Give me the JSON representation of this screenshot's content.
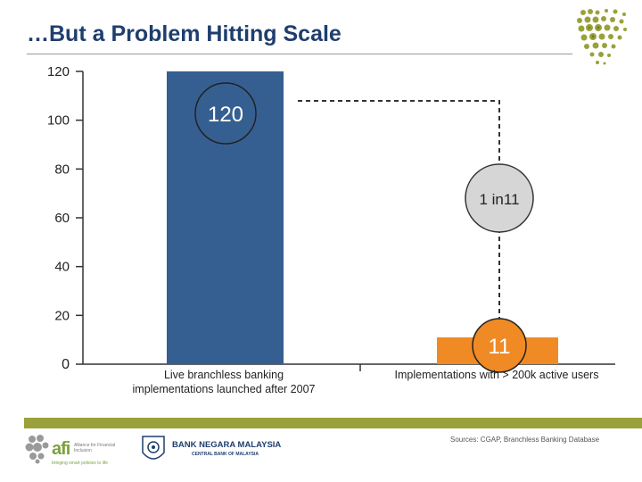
{
  "title": "…But a Problem Hitting Scale",
  "chart_data": {
    "type": "bar",
    "categories": [
      "Live branchless banking implementations launched after 2007",
      "Implementations with > 200k active users"
    ],
    "category_lines": [
      [
        "Live branchless banking",
        "implementations launched after 2007"
      ],
      [
        "Implementations with > 200k active users"
      ]
    ],
    "values": [
      120,
      11
    ],
    "colors": [
      "#365f91",
      "#f08a24"
    ],
    "value_labels": [
      "120",
      "11"
    ],
    "ratio_label": "1 in11",
    "ylim": [
      0,
      120
    ],
    "yticks": [
      0,
      20,
      40,
      60,
      80,
      100,
      120
    ],
    "grid": false,
    "legend": "none"
  },
  "footer": {
    "sources": "Sources: CGAP, Branchless Banking Database",
    "afi": {
      "name": "afi",
      "desc": "Alliance for Financial Inclusion",
      "tagline": "bringing smart policies to life"
    },
    "bnm": {
      "name": "BANK NEGARA MALAYSIA",
      "sub": "CENTRAL BANK OF MALAYSIA"
    }
  },
  "colors": {
    "title": "#1f3e6e",
    "bar_blue": "#365f91",
    "bar_orange": "#f08a24",
    "footer_band": "#9aa13a",
    "logo_green": "#7ba23f"
  }
}
